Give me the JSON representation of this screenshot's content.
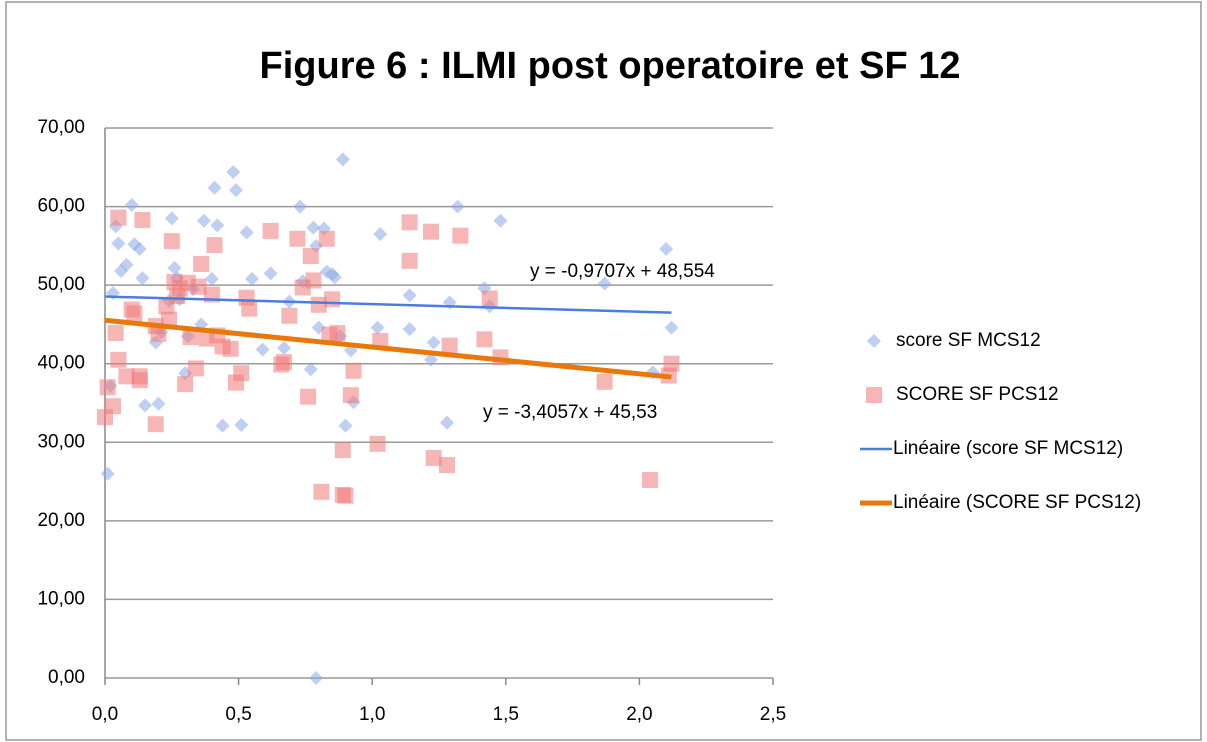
{
  "chart_data": {
    "type": "scatter",
    "title": "Figure 6 : ILMI post operatoire et SF 12",
    "xlim": [
      0,
      2.5
    ],
    "ylim": [
      0,
      70
    ],
    "xticks": [
      {
        "value": 0,
        "label": "0,0"
      },
      {
        "value": 0.5,
        "label": "0,5"
      },
      {
        "value": 1,
        "label": "1,0"
      },
      {
        "value": 1.5,
        "label": "1,5"
      },
      {
        "value": 2,
        "label": "2,0"
      },
      {
        "value": 2.5,
        "label": "2,5"
      }
    ],
    "yticks": [
      {
        "value": 0,
        "label": "0,00"
      },
      {
        "value": 10,
        "label": "10,00"
      },
      {
        "value": 20,
        "label": "20,00"
      },
      {
        "value": 30,
        "label": "30,00"
      },
      {
        "value": 40,
        "label": "40,00"
      },
      {
        "value": 50,
        "label": "50,00"
      },
      {
        "value": 60,
        "label": "60,00"
      },
      {
        "value": 70,
        "label": "70,00"
      }
    ],
    "grid": true,
    "legend": "right",
    "series": [
      {
        "name": "score SF MCS12",
        "color": "#8aa8e8",
        "marker": "diamond",
        "x": [
          0.02,
          0.01,
          0.03,
          0.04,
          0.05,
          0.06,
          0.08,
          0.1,
          0.11,
          0.13,
          0.14,
          0.15,
          0.19,
          0.2,
          0.21,
          0.24,
          0.25,
          0.26,
          0.27,
          0.28,
          0.3,
          0.31,
          0.33,
          0.36,
          0.37,
          0.4,
          0.41,
          0.42,
          0.44,
          0.48,
          0.49,
          0.51,
          0.53,
          0.55,
          0.59,
          0.62,
          0.67,
          0.69,
          0.73,
          0.74,
          0.77,
          0.78,
          0.79,
          0.8,
          0.79,
          0.82,
          0.83,
          0.85,
          0.86,
          0.88,
          0.89,
          0.9,
          0.92,
          0.93,
          1.02,
          1.03,
          1.14,
          1.14,
          1.22,
          1.23,
          1.28,
          1.29,
          1.32,
          1.42,
          1.44,
          1.48,
          1.87,
          2.05,
          2.1,
          2.12
        ],
        "values": [
          37.2,
          26.0,
          49.0,
          57.5,
          55.3,
          51.8,
          52.6,
          60.2,
          55.2,
          54.6,
          50.9,
          34.7,
          42.7,
          34.9,
          44.0,
          48.0,
          58.5,
          52.2,
          50.9,
          48.2,
          38.8,
          43.5,
          49.5,
          45.0,
          58.2,
          50.8,
          62.4,
          57.6,
          32.1,
          64.4,
          62.1,
          32.2,
          56.7,
          50.8,
          41.8,
          51.5,
          42.0,
          47.9,
          60.0,
          50.5,
          39.3,
          57.3,
          55.0,
          44.6,
          0.0,
          57.2,
          51.7,
          51.4,
          51.0,
          43.5,
          66.0,
          32.1,
          41.7,
          35.1,
          44.6,
          56.5,
          48.7,
          44.4,
          40.5,
          42.7,
          32.5,
          47.8,
          60.0,
          49.6,
          47.3,
          58.2,
          50.2,
          38.9,
          54.6,
          44.6
        ]
      },
      {
        "name": "SCORE SF PCS12",
        "color": "#f07a7a",
        "marker": "square",
        "x": [
          0.0,
          0.01,
          0.03,
          0.04,
          0.05,
          0.05,
          0.08,
          0.1,
          0.11,
          0.13,
          0.13,
          0.14,
          0.19,
          0.19,
          0.2,
          0.23,
          0.24,
          0.25,
          0.26,
          0.27,
          0.28,
          0.3,
          0.31,
          0.32,
          0.34,
          0.35,
          0.36,
          0.38,
          0.4,
          0.41,
          0.42,
          0.44,
          0.47,
          0.49,
          0.51,
          0.53,
          0.54,
          0.62,
          0.66,
          0.67,
          0.69,
          0.72,
          0.74,
          0.76,
          0.77,
          0.78,
          0.8,
          0.81,
          0.83,
          0.84,
          0.85,
          0.87,
          0.89,
          0.89,
          0.9,
          0.92,
          0.93,
          1.02,
          1.03,
          1.14,
          1.14,
          1.22,
          1.23,
          1.28,
          1.29,
          1.33,
          1.42,
          1.44,
          1.48,
          1.87,
          2.04,
          2.11,
          2.12
        ],
        "values": [
          33.2,
          37.0,
          34.6,
          43.9,
          58.6,
          40.5,
          38.4,
          46.9,
          46.4,
          38.4,
          37.9,
          58.3,
          44.8,
          32.3,
          43.8,
          47.3,
          45.6,
          55.6,
          50.4,
          48.6,
          49.6,
          37.4,
          50.3,
          43.4,
          39.4,
          49.8,
          52.7,
          43.2,
          48.8,
          55.1,
          43.6,
          42.2,
          41.9,
          37.6,
          38.8,
          48.4,
          47.0,
          56.9,
          39.9,
          40.2,
          46.1,
          55.9,
          49.7,
          35.8,
          53.7,
          50.6,
          47.5,
          23.7,
          55.9,
          43.7,
          48.2,
          43.9,
          29.0,
          23.3,
          23.2,
          36.0,
          39.1,
          29.8,
          42.9,
          58.0,
          53.1,
          56.8,
          28.0,
          27.1,
          42.3,
          56.3,
          43.1,
          48.3,
          40.8,
          37.7,
          25.2,
          38.5,
          40.0
        ]
      },
      {
        "name": "Linéaire (score SF MCS12)",
        "color": "#4a7de0",
        "marker": "line",
        "width": 2.5,
        "annotation": "y = -0,9707x + 48,554",
        "x": [
          0,
          2.12
        ],
        "values": [
          48.55,
          46.5
        ]
      },
      {
        "name": "Linéaire (SCORE SF PCS12)",
        "color": "#e8780a",
        "marker": "line",
        "width": 5,
        "annotation": "y = -3,4057x + 45,53",
        "x": [
          0,
          2.12
        ],
        "values": [
          45.53,
          38.3
        ]
      }
    ]
  }
}
